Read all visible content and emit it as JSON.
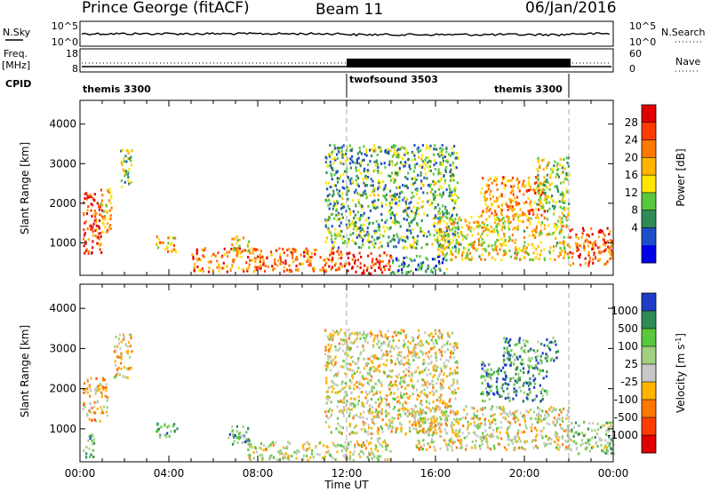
{
  "header": {
    "station": "Prince George (fitACF)",
    "beam": "Beam 11",
    "date": "06/Jan/2016"
  },
  "summary": {
    "nsky_label": "N.Sky",
    "nsky_ticks": [
      "10^5",
      "10^0"
    ],
    "nsearch_label": "N.Search",
    "nsearch_ticks": [
      "10^5",
      "10^0"
    ],
    "freq_label_1": "Freq.",
    "freq_label_2": "[MHz]",
    "freq_ticks": [
      "18",
      "8"
    ],
    "nave_label": "Nave",
    "nave_ticks": [
      "60",
      "0"
    ],
    "cpid_label": "CPID",
    "cpid_segments": [
      {
        "name": "themis 3300",
        "start_hour": 0,
        "end_hour": 12
      },
      {
        "name": "twofsound 3503",
        "start_hour": 12,
        "end_hour": 22
      },
      {
        "name": "themis 3300",
        "start_hour": 22,
        "end_hour": 24
      }
    ]
  },
  "chart_data": [
    {
      "type": "heatmap",
      "name": "power",
      "xlabel": "",
      "ylabel": "Slant Range [km]",
      "xlim_hours": [
        0,
        24
      ],
      "ylim_km": [
        180,
        4600
      ],
      "yticks": [
        "1000",
        "2000",
        "3000",
        "4000"
      ],
      "colorbar_label": "Power [dB]",
      "colorbar_ticks": [
        "28",
        "24",
        "20",
        "16",
        "12",
        "8",
        "4"
      ],
      "colorbar_colors": [
        "#e00000",
        "#ff3c00",
        "#ff7800",
        "#ffb400",
        "#ffe600",
        "#5ac83c",
        "#2e8b57",
        "#1e4fc8",
        "#0000e6"
      ],
      "markers_hours": [
        12,
        22
      ],
      "echo_regions": [
        {
          "t0": 0.1,
          "t1": 1.0,
          "r0": 700,
          "r1": 2300,
          "level": 0.85
        },
        {
          "t0": 0.9,
          "t1": 1.4,
          "r0": 1300,
          "r1": 2500,
          "level": 0.6
        },
        {
          "t0": 1.8,
          "t1": 2.3,
          "r0": 2300,
          "r1": 3400,
          "level": 0.4
        },
        {
          "t0": 3.4,
          "t1": 4.4,
          "r0": 800,
          "r1": 1200,
          "level": 0.6
        },
        {
          "t0": 5.0,
          "t1": 12.0,
          "r0": 300,
          "r1": 900,
          "level": 0.75
        },
        {
          "t0": 6.8,
          "t1": 7.6,
          "r0": 800,
          "r1": 1200,
          "level": 0.55
        },
        {
          "t0": 12.0,
          "t1": 14.0,
          "r0": 250,
          "r1": 800,
          "level": 0.9
        },
        {
          "t0": 14.0,
          "t1": 16.5,
          "r0": 250,
          "r1": 700,
          "level": 0.25
        },
        {
          "t0": 11.0,
          "t1": 17.0,
          "r0": 900,
          "r1": 3500,
          "level": 0.35
        },
        {
          "t0": 16.0,
          "t1": 22.0,
          "r0": 600,
          "r1": 1700,
          "level": 0.55
        },
        {
          "t0": 18.0,
          "t1": 21.0,
          "r0": 1700,
          "r1": 2700,
          "level": 0.7
        },
        {
          "t0": 20.5,
          "t1": 22.0,
          "r0": 1700,
          "r1": 3200,
          "level": 0.45
        },
        {
          "t0": 22.0,
          "t1": 24.0,
          "r0": 450,
          "r1": 1400,
          "level": 0.8
        }
      ]
    },
    {
      "type": "heatmap",
      "name": "velocity",
      "xlabel": "Time UT",
      "ylabel": "Slant Range [km]",
      "xlim_hours": [
        0,
        24
      ],
      "ylim_km": [
        180,
        4600
      ],
      "xticks": [
        "00:00",
        "04:00",
        "08:00",
        "12:00",
        "16:00",
        "20:00",
        "00:00"
      ],
      "yticks": [
        "1000",
        "2000",
        "3000",
        "4000"
      ],
      "colorbar_label": "Velocity [m s^-1]",
      "colorbar_ticks": [
        "1000",
        "500",
        "100",
        "25",
        "-25",
        "-100",
        "-500",
        "-1000"
      ],
      "colorbar_colors": [
        "#1e3cc8",
        "#2e8b57",
        "#5ac83c",
        "#a0d080",
        "#c8c8c8",
        "#ffb400",
        "#ff7800",
        "#ff3c00",
        "#e00000"
      ],
      "markers_hours": [
        12,
        22
      ],
      "echo_regions": [
        {
          "t0": 0.1,
          "t1": 1.2,
          "r0": 1200,
          "r1": 2300,
          "level": 0.4
        },
        {
          "t0": 0.1,
          "t1": 0.6,
          "r0": 300,
          "r1": 900,
          "level": 0.7
        },
        {
          "t0": 1.5,
          "t1": 2.3,
          "r0": 2300,
          "r1": 3400,
          "level": 0.45
        },
        {
          "t0": 3.4,
          "t1": 4.4,
          "r0": 800,
          "r1": 1200,
          "level": 0.7
        },
        {
          "t0": 6.5,
          "t1": 7.6,
          "r0": 600,
          "r1": 1100,
          "level": 0.7
        },
        {
          "t0": 7.5,
          "t1": 12.0,
          "r0": 250,
          "r1": 700,
          "level": 0.55
        },
        {
          "t0": 11.0,
          "t1": 17.0,
          "r0": 900,
          "r1": 3500,
          "level": 0.5
        },
        {
          "t0": 12.0,
          "t1": 14.0,
          "r0": 250,
          "r1": 800,
          "level": 0.5
        },
        {
          "t0": 15.0,
          "t1": 22.0,
          "r0": 500,
          "r1": 1600,
          "level": 0.5
        },
        {
          "t0": 18.0,
          "t1": 21.0,
          "r0": 1700,
          "r1": 2700,
          "level": 0.8
        },
        {
          "t0": 19.0,
          "t1": 21.5,
          "r0": 2700,
          "r1": 3300,
          "level": 0.75
        },
        {
          "t0": 22.0,
          "t1": 24.0,
          "r0": 400,
          "r1": 1200,
          "level": 0.65
        }
      ]
    }
  ]
}
